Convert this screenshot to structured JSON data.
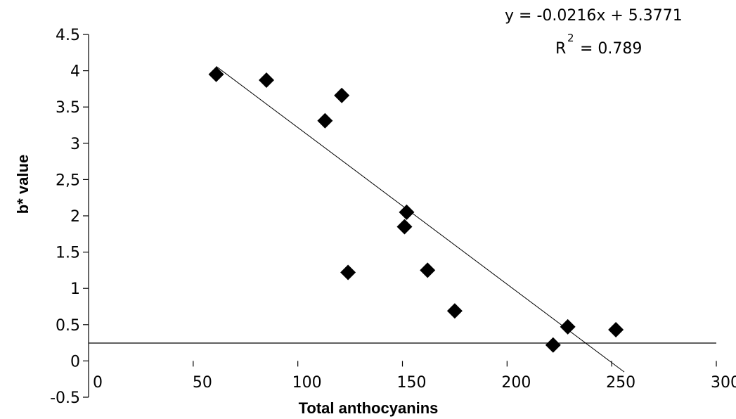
{
  "chart_data": {
    "type": "scatter",
    "xlabel": "Total anthocyanins",
    "ylabel": "b* value",
    "xlim": [
      0,
      300
    ],
    "ylim": [
      -0.5,
      4.5
    ],
    "x_ticks": [
      0,
      50,
      100,
      150,
      200,
      250,
      300
    ],
    "x_tick_labels": [
      "0",
      "50",
      "100",
      "150",
      "200",
      "250",
      "300"
    ],
    "y_ticks": [
      -0.5,
      0,
      0.5,
      1,
      1.5,
      2,
      2.5,
      3,
      3.5,
      4,
      4.5
    ],
    "y_tick_labels": [
      "-0.5",
      "0",
      "0.5",
      "1",
      "1.5",
      "2",
      "2,5",
      "3",
      "3.5",
      "4",
      "4.5"
    ],
    "grid": false,
    "marker": "diamond",
    "points": [
      {
        "x": 61,
        "y": 3.95
      },
      {
        "x": 85,
        "y": 3.87
      },
      {
        "x": 113,
        "y": 3.31
      },
      {
        "x": 121,
        "y": 3.66
      },
      {
        "x": 124,
        "y": 1.22
      },
      {
        "x": 151,
        "y": 1.85
      },
      {
        "x": 152,
        "y": 2.05
      },
      {
        "x": 162,
        "y": 1.25
      },
      {
        "x": 175,
        "y": 0.69
      },
      {
        "x": 222,
        "y": 0.22
      },
      {
        "x": 229,
        "y": 0.47
      },
      {
        "x": 252,
        "y": 0.43
      }
    ],
    "trendline": {
      "slope": -0.0216,
      "intercept": 5.3771,
      "x_range": [
        61,
        256
      ]
    },
    "equation_text": "y = -0.0216x + 5.3771",
    "r2": {
      "prefix": "R",
      "superscript": "2",
      "suffix": " = 0.789"
    },
    "colors": {
      "marker": "#000000",
      "trendline": "#000000",
      "axis": "#000000"
    }
  }
}
